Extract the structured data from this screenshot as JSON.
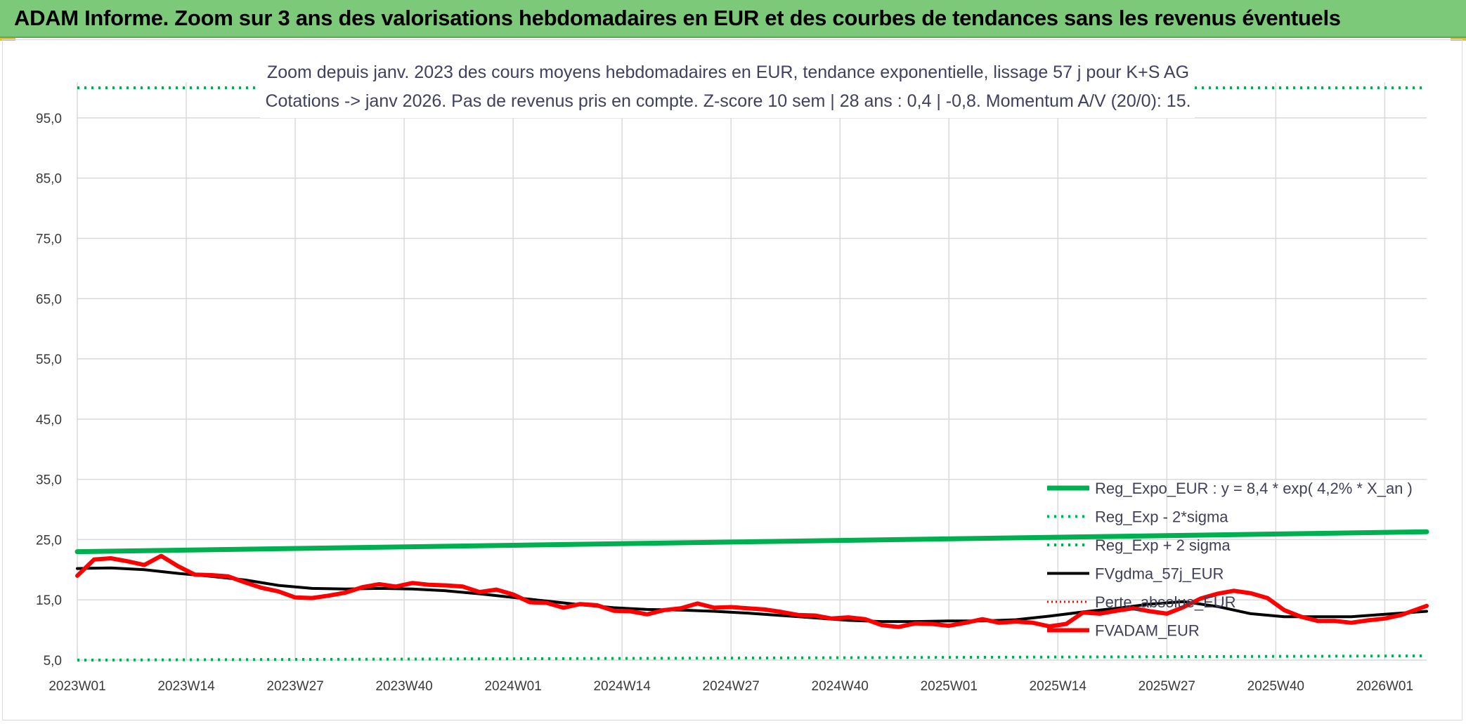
{
  "banner": {
    "title": "ADAM Informe. Zoom sur 3 ans des valorisations hebdomadaires en EUR et des courbes de tendances sans les revenus éventuels"
  },
  "colors": {
    "banner_bg": "#7dc97a",
    "reg_expo": "#00b050",
    "fvgdma": "#000000",
    "fvadam": "#ff0000",
    "perte": "#ff0000",
    "grid": "#d9d9d9"
  },
  "chart_data": {
    "type": "line",
    "title_line1": "Zoom depuis janv. 2023 des cours moyens hebdomadaires en EUR, tendance exponentielle, lissage 57 j pour K+S AG",
    "title_line2": "Cotations -> janv 2026. Pas de revenus pris en compte. Z-score 10 sem | 28 ans : 0,4 | -0,8. Momentum A/V (20/0): 15.",
    "y_ticks": [
      "5,0",
      "15,0",
      "25,0",
      "35,0",
      "45,0",
      "55,0",
      "65,0",
      "75,0",
      "85,0",
      "95,0"
    ],
    "ylim": [
      5,
      100
    ],
    "x_ticks": [
      "2023W01",
      "2023W14",
      "2023W27",
      "2023W40",
      "2024W01",
      "2024W14",
      "2024W27",
      "2024W40",
      "2025W01",
      "2025W14",
      "2025W27",
      "2025W40",
      "2026W01"
    ],
    "x_range_weeks": [
      0,
      161
    ],
    "grid": true,
    "legend_position": "bottom-right",
    "series": [
      {
        "name": "Reg_Expo_EUR : y = 8,4 * exp( 4,2% *  X_an )",
        "key": "reg_expo",
        "style": "solid",
        "x": [
          0,
          161
        ],
        "y": [
          23.0,
          26.3
        ]
      },
      {
        "name": "Reg_Exp - 2*sigma",
        "key": "reg_minus",
        "style": "dotted",
        "x": [
          0,
          161
        ],
        "y": [
          5.0,
          5.7
        ]
      },
      {
        "name": "Reg_Exp + 2 sigma",
        "key": "reg_plus",
        "style": "dotted",
        "x": [
          0,
          161
        ],
        "y": [
          100.0,
          100.0
        ]
      },
      {
        "name": "FVgdma_57j_EUR",
        "key": "fvgdma",
        "style": "solid",
        "x": [
          0,
          4,
          8,
          12,
          16,
          20,
          24,
          28,
          32,
          36,
          40,
          44,
          48,
          52,
          56,
          60,
          64,
          68,
          72,
          76,
          80,
          84,
          88,
          92,
          96,
          100,
          104,
          108,
          112,
          116,
          120,
          124,
          128,
          132,
          136,
          140,
          144,
          148,
          152,
          156,
          161
        ],
        "y": [
          20.2,
          20.3,
          20.0,
          19.4,
          18.9,
          18.3,
          17.4,
          16.9,
          16.8,
          16.9,
          16.8,
          16.5,
          16.0,
          15.4,
          14.8,
          14.2,
          13.7,
          13.4,
          13.3,
          13.1,
          12.8,
          12.4,
          12.0,
          11.6,
          11.4,
          11.4,
          11.5,
          11.5,
          11.7,
          12.3,
          13.0,
          13.6,
          14.3,
          14.7,
          13.9,
          12.7,
          12.2,
          12.2,
          12.2,
          12.6,
          13.1
        ]
      },
      {
        "name": "Perte_absolue_EUR",
        "key": "perte",
        "style": "dotted",
        "x": [],
        "y": []
      },
      {
        "name": "FVADAM_EUR",
        "key": "fvadam",
        "style": "solid",
        "x": [
          0,
          2,
          4,
          6,
          8,
          10,
          12,
          14,
          16,
          18,
          20,
          22,
          24,
          26,
          28,
          30,
          32,
          34,
          36,
          38,
          40,
          42,
          44,
          46,
          48,
          50,
          52,
          54,
          56,
          58,
          60,
          62,
          64,
          66,
          68,
          70,
          72,
          74,
          76,
          78,
          80,
          82,
          84,
          86,
          88,
          90,
          92,
          94,
          96,
          98,
          100,
          102,
          104,
          106,
          108,
          110,
          112,
          114,
          116,
          118,
          120,
          122,
          124,
          126,
          128,
          130,
          132,
          134,
          136,
          138,
          140,
          142,
          144,
          146,
          148,
          150,
          152,
          154,
          156,
          158,
          161
        ],
        "y": [
          19.0,
          21.7,
          21.9,
          21.4,
          20.8,
          22.3,
          20.6,
          19.2,
          19.1,
          18.9,
          17.9,
          17.0,
          16.4,
          15.4,
          15.3,
          15.7,
          16.2,
          17.1,
          17.6,
          17.2,
          17.8,
          17.5,
          17.4,
          17.2,
          16.3,
          16.7,
          15.9,
          14.6,
          14.5,
          13.7,
          14.3,
          14.1,
          13.2,
          13.1,
          12.6,
          13.3,
          13.6,
          14.4,
          13.7,
          13.8,
          13.6,
          13.4,
          13.0,
          12.5,
          12.4,
          11.9,
          12.1,
          11.8,
          10.8,
          10.5,
          11.1,
          11.0,
          10.7,
          11.2,
          11.8,
          11.2,
          11.4,
          11.2,
          10.6,
          11.0,
          12.9,
          12.7,
          13.2,
          13.6,
          13.1,
          12.7,
          13.8,
          15.2,
          16.0,
          16.5,
          16.1,
          15.3,
          13.3,
          12.2,
          11.5,
          11.5,
          11.2,
          11.6,
          11.9,
          12.5,
          14.0
        ]
      }
    ]
  }
}
